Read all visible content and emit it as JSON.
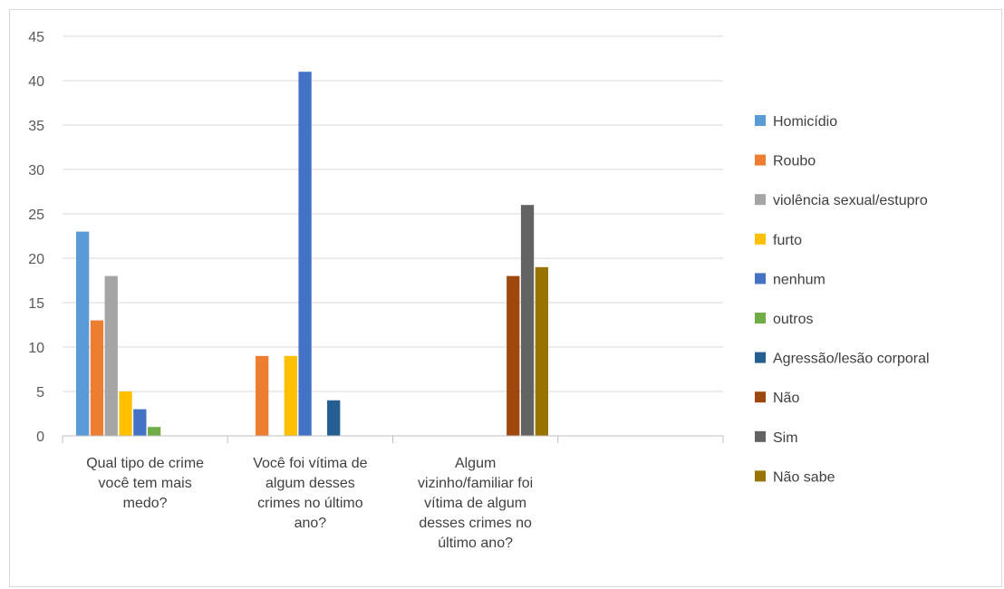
{
  "chart_data": {
    "type": "bar",
    "title": "",
    "xlabel": "",
    "ylabel": "",
    "ylim": [
      0,
      45
    ],
    "ytick_step": 5,
    "grid": true,
    "legend_position": "right",
    "categories": [
      [
        "Qual tipo de crime",
        "você tem mais",
        "medo?"
      ],
      [
        "Você foi vítima de",
        "algum desses",
        "crimes no último",
        "ano?"
      ],
      [
        "Algum",
        "vizinho/familiar foi",
        "vítima de algum",
        "desses crimes no",
        "último ano?"
      ],
      [
        ""
      ]
    ],
    "series": [
      {
        "name": "Homicídio",
        "color": "#5B9BD5",
        "values": [
          23,
          0,
          0,
          0
        ]
      },
      {
        "name": "Roubo",
        "color": "#ED7D31",
        "values": [
          13,
          9,
          0,
          0
        ]
      },
      {
        "name": "violência sexual/estupro",
        "color": "#A5A5A5",
        "values": [
          18,
          0,
          0,
          0
        ]
      },
      {
        "name": "furto",
        "color": "#FFC000",
        "values": [
          5,
          9,
          0,
          0
        ]
      },
      {
        "name": "nenhum",
        "color": "#4472C4",
        "values": [
          3,
          41,
          0,
          0
        ]
      },
      {
        "name": "outros",
        "color": "#70AD47",
        "values": [
          1,
          0,
          0,
          0
        ]
      },
      {
        "name": "Agressão/lesão corporal",
        "color": "#255E91",
        "values": [
          0,
          4,
          0,
          0
        ]
      },
      {
        "name": "Não",
        "color": "#9E480E",
        "values": [
          0,
          0,
          18,
          0
        ]
      },
      {
        "name": "Sim",
        "color": "#636363",
        "values": [
          0,
          0,
          26,
          0
        ]
      },
      {
        "name": "Não sabe",
        "color": "#997300",
        "values": [
          0,
          0,
          19,
          0
        ]
      }
    ]
  }
}
